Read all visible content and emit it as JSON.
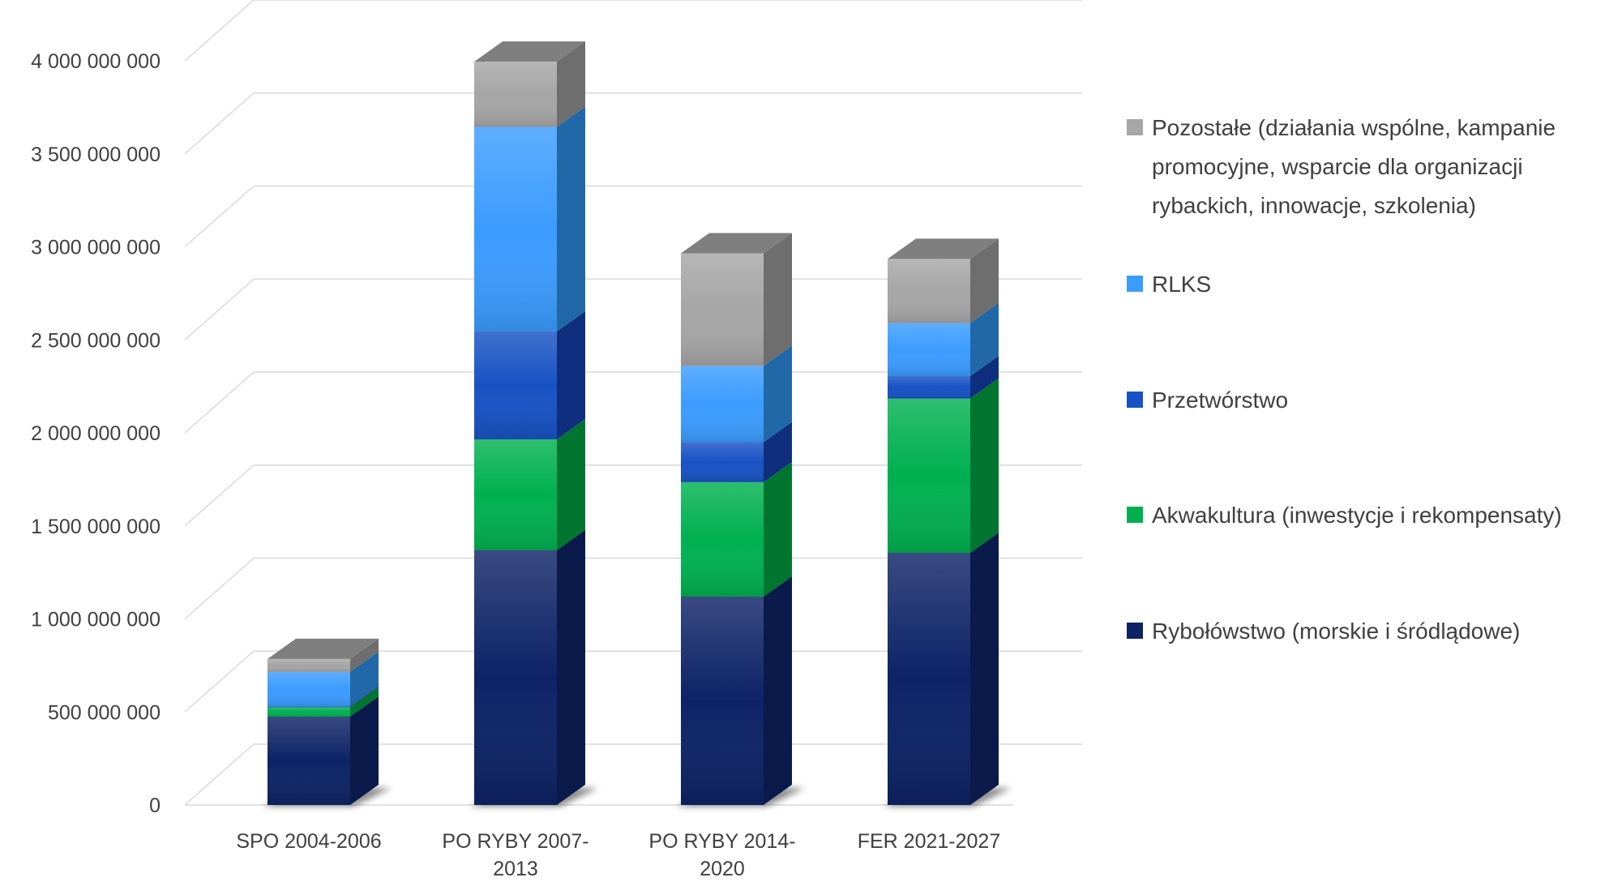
{
  "chart_data": {
    "type": "bar",
    "stacked": true,
    "three_d": true,
    "title": "",
    "xlabel": "",
    "ylabel": "",
    "ylim": [
      0,
      4000000000
    ],
    "grid": true,
    "legend_position": "right",
    "y_ticks": [
      "0",
      "500 000 000",
      "1 000 000 000",
      "1 500 000 000",
      "2 000 000 000",
      "2 500 000 000",
      "3 000 000 000",
      "3 500 000 000",
      "4 000 000 000"
    ],
    "categories": [
      [
        "SPO 2004-2006"
      ],
      [
        "PO RYBY 2007-",
        "2013"
      ],
      [
        "PO RYBY 2014-",
        "2020"
      ],
      [
        "FER 2021-2027"
      ]
    ],
    "series": [
      {
        "name": "Rybołówstwo (morskie i śródlądowe)",
        "values": [
          475000000,
          1370000000,
          1120000000,
          1355000000
        ],
        "color": "#0D2366",
        "side_color": "#0A1A4A",
        "legend_lines": [
          "Rybołówstwo (morskie i śródlądowe)"
        ]
      },
      {
        "name": "Akwakultura (inwestycje i rekompensaty)",
        "values": [
          50000000,
          595000000,
          615000000,
          830000000
        ],
        "color": "#00B050",
        "side_color": "#00752F",
        "legend_lines": [
          "Akwakultura (inwestycje i rekompensaty)"
        ]
      },
      {
        "name": "Przetwórstwo",
        "values": [
          5000000,
          580000000,
          215000000,
          120000000
        ],
        "color": "#1752C4",
        "side_color": "#0F2F7E",
        "legend_lines": [
          "Przetwórstwo"
        ]
      },
      {
        "name": "RLKS",
        "values": [
          185000000,
          1100000000,
          410000000,
          285000000
        ],
        "color": "#3B9CFF",
        "side_color": "#2168A8",
        "legend_lines": [
          "RLKS"
        ]
      },
      {
        "name": "Pozostałe (działania wspólne, kampanie promocyjne, wsparcie dla organizacji rybackich, innowacje, szkolenia)",
        "values": [
          70000000,
          350000000,
          605000000,
          345000000
        ],
        "color": "#A6A6A6",
        "side_color": "#6E6E6E",
        "legend_lines": [
          "Pozostałe (działania wspólne, kampanie",
          "promocyjne, wsparcie dla organizacji",
          "rybackich, innowacje, szkolenia)"
        ]
      }
    ]
  }
}
